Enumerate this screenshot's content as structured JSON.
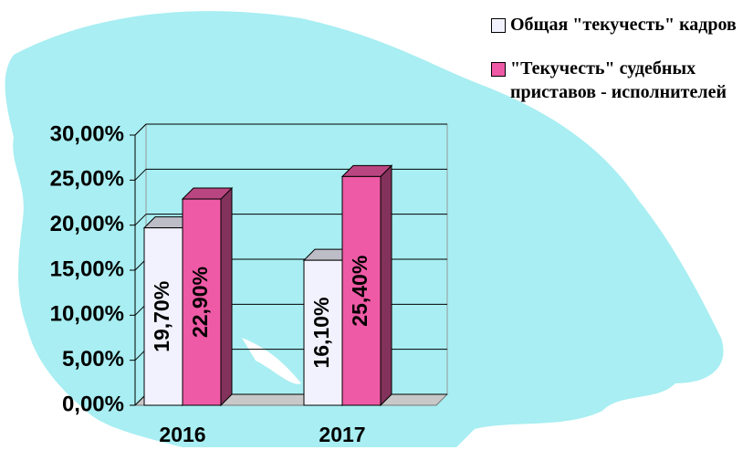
{
  "chart_data": {
    "type": "bar",
    "categories": [
      "2016",
      "2017"
    ],
    "series": [
      {
        "name": "Общая \"текучесть\" кадров",
        "color": "#f2f2ff",
        "values": [
          19.7,
          16.1
        ],
        "value_labels": [
          "19,70%",
          "16,10%"
        ]
      },
      {
        "name": "\"Текучесть\" судебных приставов - исполнителей",
        "color": "#ee5aa5",
        "values": [
          22.9,
          25.4
        ],
        "value_labels": [
          "22,90%",
          "25,40%"
        ]
      }
    ],
    "ylim": [
      0,
      30
    ],
    "yticks": [
      {
        "value": 0,
        "label": "0,00%"
      },
      {
        "value": 5,
        "label": "5,00%"
      },
      {
        "value": 10,
        "label": "10,00%"
      },
      {
        "value": 15,
        "label": "15,00%"
      },
      {
        "value": 20,
        "label": "20,00%"
      },
      {
        "value": 25,
        "label": "25,00%"
      },
      {
        "value": 30,
        "label": "30,00%"
      }
    ],
    "grid": true
  }
}
